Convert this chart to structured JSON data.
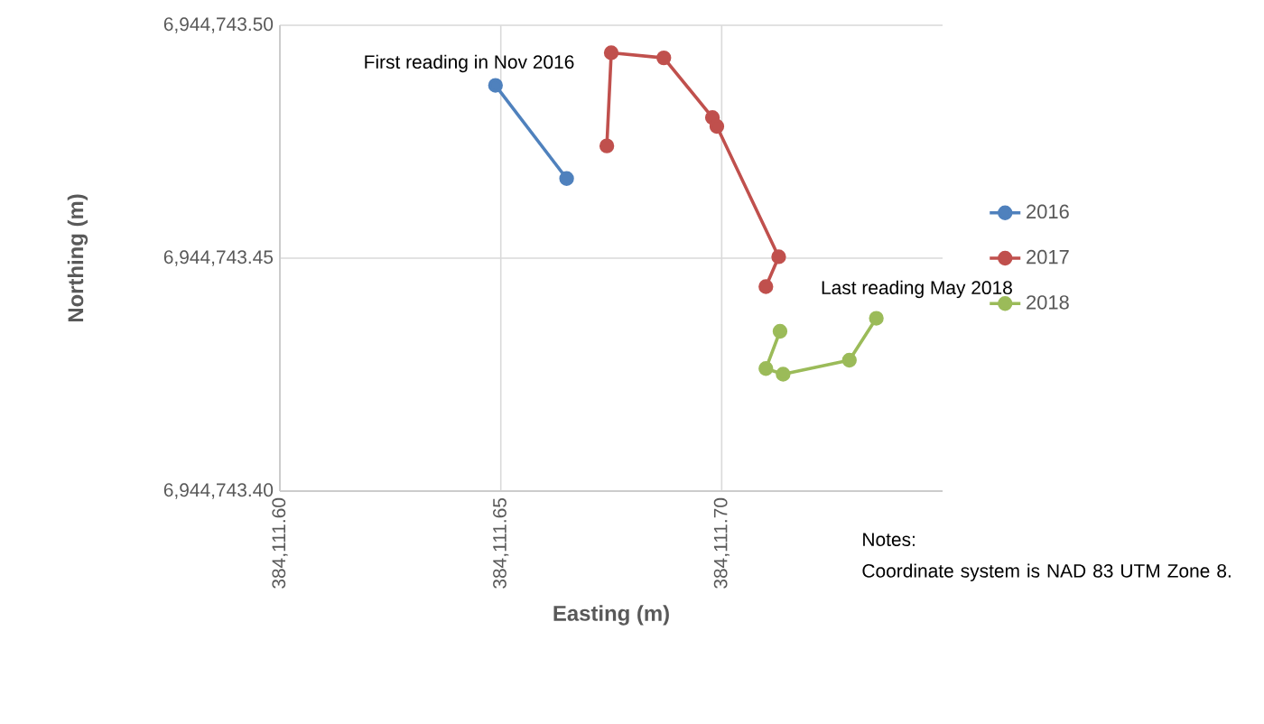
{
  "chart_data": {
    "type": "line",
    "xlabel": "Easting (m)",
    "ylabel": "Northing (m)",
    "series": [
      {
        "name": "2016",
        "color": "#4f81bd",
        "x": [
          384111.6488,
          384111.6649
        ],
        "values": [
          6944743.4871,
          6944743.4671
        ]
      },
      {
        "name": "2017",
        "color": "#c0504d",
        "x": [
          384111.674,
          384111.675,
          384111.6869,
          384111.6979,
          384111.6989,
          384111.7129,
          384111.71
        ],
        "values": [
          6944743.4741,
          6944743.4941,
          6944743.493,
          6944743.4802,
          6944743.4783,
          6944743.4503,
          6944743.4439
        ]
      },
      {
        "name": "2018",
        "color": "#9bbb59",
        "x": [
          384111.7132,
          384111.71,
          384111.7139,
          384111.7289,
          384111.735
        ],
        "values": [
          6944743.4343,
          6944743.4263,
          6944743.4251,
          6944743.4281,
          6944743.4371
        ]
      }
    ],
    "xlim": [
      384111.6,
      384111.75
    ],
    "xticks": [
      {
        "value": 384111.6,
        "label": "384,111.60"
      },
      {
        "value": 384111.65,
        "label": "384,111.65"
      },
      {
        "value": 384111.7,
        "label": "384,111.70"
      }
    ],
    "ylim": [
      6944743.4,
      6944743.5
    ],
    "yticks": [
      {
        "value": 6944743.4,
        "label": "6,944,743.40"
      },
      {
        "value": 6944743.45,
        "label": "6,944,743.45"
      },
      {
        "value": 6944743.5,
        "label": "6,944,743.50"
      }
    ],
    "grid": true,
    "legend": "right",
    "marker": "circle",
    "line_style": "solid",
    "annotations": [
      {
        "text": "First reading in Nov 2016",
        "x": 384111.6488,
        "y": 6944743.4871
      },
      {
        "text": "Last reading May 2018",
        "x": 384111.735,
        "y": 6944743.4371
      },
      "Notes:",
      "Coordinate system is NAD 83 UTM Zone 8."
    ]
  }
}
